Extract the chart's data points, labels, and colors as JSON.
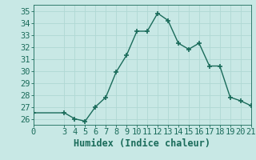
{
  "x": [
    0,
    3,
    4,
    5,
    6,
    7,
    8,
    9,
    10,
    11,
    12,
    13,
    14,
    15,
    16,
    17,
    18,
    19,
    20,
    21
  ],
  "y": [
    26.5,
    26.5,
    26.0,
    25.8,
    27.0,
    27.8,
    29.9,
    31.3,
    33.3,
    33.3,
    34.8,
    34.2,
    32.3,
    31.8,
    32.3,
    30.4,
    30.4,
    27.8,
    27.5,
    27.1
  ],
  "line_color": "#1a6b5a",
  "bg_color": "#c8e8e5",
  "grid_color": "#b0d8d4",
  "xlabel": "Humidex (Indice chaleur)",
  "xlim": [
    0,
    21
  ],
  "ylim": [
    25.5,
    35.5
  ],
  "yticks": [
    26,
    27,
    28,
    29,
    30,
    31,
    32,
    33,
    34,
    35
  ],
  "xticks": [
    0,
    3,
    4,
    5,
    6,
    7,
    8,
    9,
    10,
    11,
    12,
    13,
    14,
    15,
    16,
    17,
    18,
    19,
    20,
    21
  ],
  "tick_fontsize": 7.5,
  "xlabel_fontsize": 8.5,
  "marker": "+",
  "linewidth": 1.0,
  "markersize": 4.5,
  "markeredgewidth": 1.2
}
